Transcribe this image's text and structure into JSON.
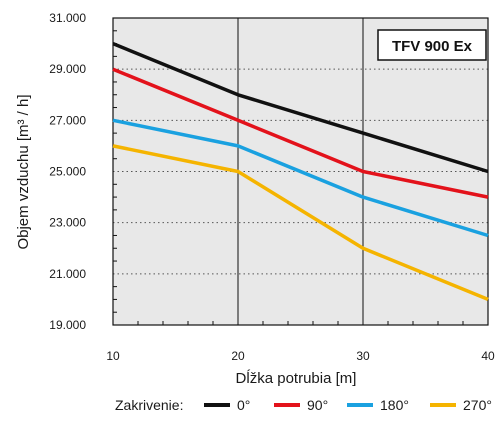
{
  "chart_data": {
    "type": "line",
    "title": "TFV 900 Ex",
    "xlabel": "Dĺžka potrubia [m]",
    "ylabel": "Objem vzduchu [m³ / h]",
    "x": [
      10,
      20,
      30,
      40
    ],
    "xticks": [
      "10",
      "20",
      "30",
      "40"
    ],
    "xlim": [
      10,
      40
    ],
    "ylim": [
      19000,
      31000
    ],
    "yticks": [
      "19.000",
      "21.000",
      "23.000",
      "25.000",
      "27.000",
      "29.000",
      "31.000"
    ],
    "ytick_values": [
      19000,
      21000,
      23000,
      25000,
      27000,
      29000,
      31000
    ],
    "grid": true,
    "background": "#e8e8e8",
    "legend_title": "Zakrivenie:",
    "legend_position": "bottom",
    "series": [
      {
        "name": "0°",
        "color": "#111111",
        "values": [
          30000,
          28000,
          26500,
          25000
        ]
      },
      {
        "name": "90°",
        "color": "#e3121b",
        "values": [
          29000,
          27000,
          25000,
          24000
        ]
      },
      {
        "name": "180°",
        "color": "#1aa1e0",
        "values": [
          27000,
          26000,
          24000,
          22500
        ]
      },
      {
        "name": "270°",
        "color": "#f5b400",
        "values": [
          26000,
          25000,
          22000,
          20000
        ]
      }
    ]
  }
}
